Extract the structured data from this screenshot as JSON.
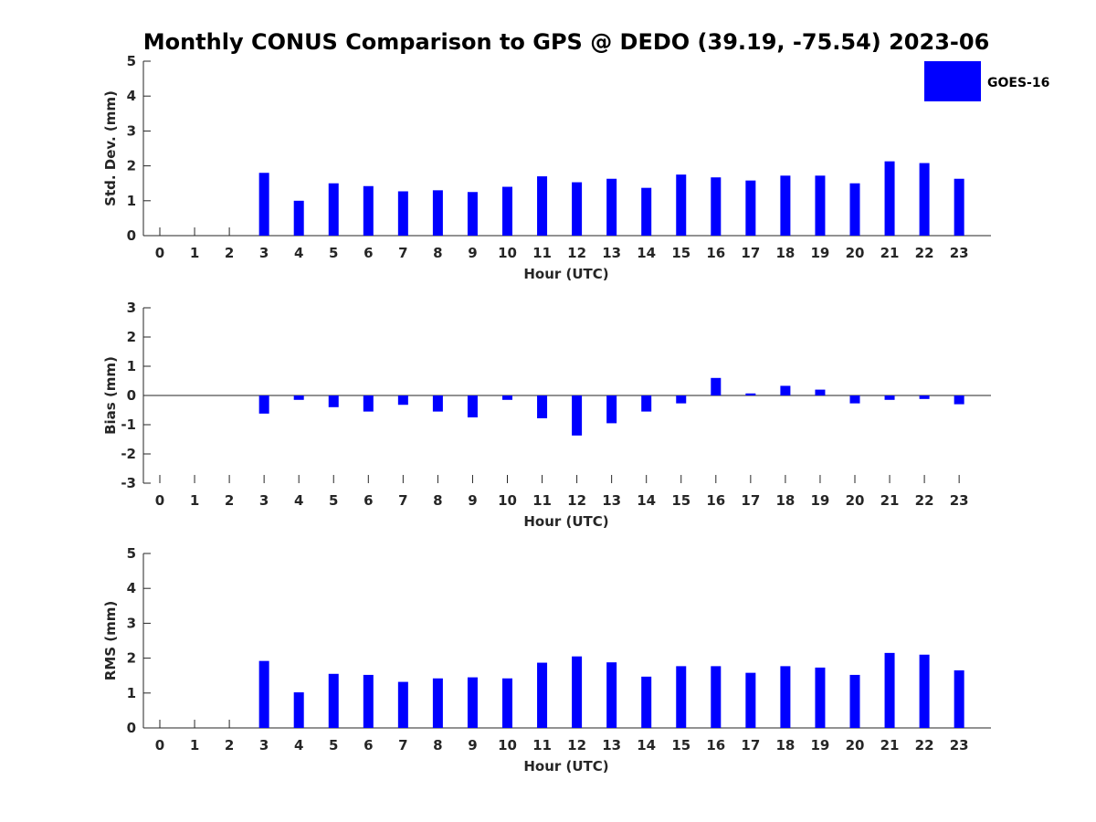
{
  "title": "Monthly CONUS Comparison to GPS @ DEDO (39.19, -75.54) 2023-06",
  "legend": {
    "label": "GOES-16",
    "color": "#0000ff",
    "placement": "top-right"
  },
  "chart_data": [
    {
      "type": "bar",
      "ylabel": "Std. Dev. (mm)",
      "xlabel": "Hour (UTC)",
      "categories": [
        "0",
        "1",
        "2",
        "3",
        "4",
        "5",
        "6",
        "7",
        "8",
        "9",
        "10",
        "11",
        "12",
        "13",
        "14",
        "15",
        "16",
        "17",
        "18",
        "19",
        "20",
        "21",
        "22",
        "23"
      ],
      "series": [
        {
          "name": "GOES-16",
          "values": [
            null,
            null,
            null,
            1.8,
            1.0,
            1.5,
            1.42,
            1.27,
            1.3,
            1.25,
            1.4,
            1.7,
            1.53,
            1.63,
            1.37,
            1.75,
            1.67,
            1.58,
            1.72,
            1.72,
            1.5,
            2.13,
            2.08,
            1.63
          ]
        }
      ],
      "ylim": [
        0,
        5
      ],
      "yticks": [
        "0",
        "1",
        "2",
        "3",
        "4",
        "5"
      ]
    },
    {
      "type": "bar",
      "ylabel": "Bias (mm)",
      "xlabel": "Hour (UTC)",
      "categories": [
        "0",
        "1",
        "2",
        "3",
        "4",
        "5",
        "6",
        "7",
        "8",
        "9",
        "10",
        "11",
        "12",
        "13",
        "14",
        "15",
        "16",
        "17",
        "18",
        "19",
        "20",
        "21",
        "22",
        "23"
      ],
      "series": [
        {
          "name": "GOES-16",
          "values": [
            null,
            null,
            null,
            -0.62,
            -0.15,
            -0.4,
            -0.55,
            -0.32,
            -0.55,
            -0.75,
            -0.15,
            -0.78,
            -1.37,
            -0.95,
            -0.55,
            -0.27,
            0.6,
            0.07,
            0.33,
            0.2,
            -0.27,
            -0.15,
            -0.12,
            -0.3
          ]
        }
      ],
      "ylim": [
        -3,
        3
      ],
      "yticks": [
        "-3",
        "-2",
        "-1",
        "0",
        "1",
        "2",
        "3"
      ]
    },
    {
      "type": "bar",
      "ylabel": "RMS (mm)",
      "xlabel": "Hour (UTC)",
      "categories": [
        "0",
        "1",
        "2",
        "3",
        "4",
        "5",
        "6",
        "7",
        "8",
        "9",
        "10",
        "11",
        "12",
        "13",
        "14",
        "15",
        "16",
        "17",
        "18",
        "19",
        "20",
        "21",
        "22",
        "23"
      ],
      "series": [
        {
          "name": "GOES-16",
          "values": [
            null,
            null,
            null,
            1.92,
            1.02,
            1.55,
            1.52,
            1.32,
            1.42,
            1.45,
            1.42,
            1.87,
            2.05,
            1.88,
            1.47,
            1.77,
            1.77,
            1.58,
            1.77,
            1.73,
            1.52,
            2.15,
            2.1,
            1.65
          ]
        }
      ],
      "ylim": [
        0,
        5
      ],
      "yticks": [
        "0",
        "1",
        "2",
        "3",
        "4",
        "5"
      ]
    }
  ]
}
